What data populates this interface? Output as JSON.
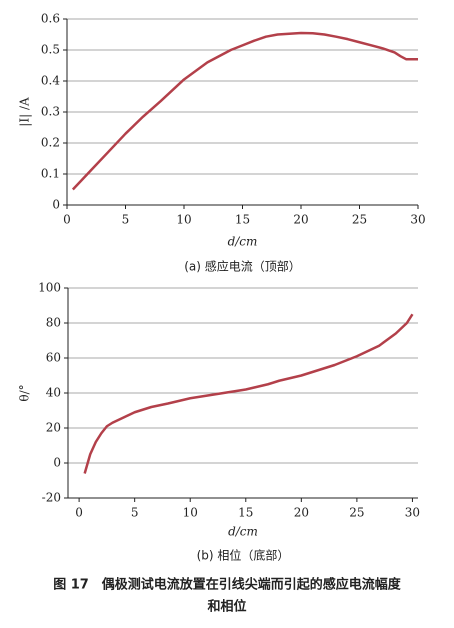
{
  "chart_data": [
    {
      "type": "line",
      "caption": "(a)  感应电流（顶部）",
      "x_label": "d/cm",
      "y_label": "|I| /A",
      "xlim": [
        0,
        30
      ],
      "xticks": [
        0,
        5,
        10,
        15,
        20,
        25,
        30
      ],
      "ylim": [
        0,
        0.6
      ],
      "yticks": [
        0,
        0.1,
        0.2,
        0.3,
        0.4,
        0.5,
        0.6
      ],
      "grid": true,
      "series": [
        {
          "color": "#b3404a",
          "x": [
            0.5,
            2,
            3.5,
            5,
            6.5,
            8,
            10,
            12,
            14,
            15,
            16,
            17,
            18,
            20,
            21,
            22,
            23,
            24,
            25,
            26,
            27,
            28,
            28.5,
            29,
            30
          ],
          "values": [
            0.05,
            0.11,
            0.17,
            0.23,
            0.285,
            0.335,
            0.405,
            0.46,
            0.5,
            0.515,
            0.53,
            0.543,
            0.55,
            0.555,
            0.554,
            0.55,
            0.543,
            0.535,
            0.525,
            0.515,
            0.505,
            0.492,
            0.48,
            0.47,
            0.47
          ]
        }
      ]
    },
    {
      "type": "line",
      "caption": "(b)  相位（底部）",
      "x_label": "d/cm",
      "y_label": "θ/°",
      "xlim": [
        -1,
        30.5
      ],
      "xticks": [
        0,
        5,
        10,
        15,
        20,
        25,
        30
      ],
      "ylim": [
        -20,
        100
      ],
      "yticks": [
        -20,
        0,
        20,
        40,
        60,
        80,
        100
      ],
      "grid": true,
      "series": [
        {
          "color": "#b3404a",
          "x": [
            0.5,
            1,
            1.5,
            2,
            2.5,
            3,
            4,
            5,
            6.5,
            8,
            10,
            12,
            13,
            15,
            17,
            18,
            20,
            22,
            23,
            25,
            27,
            28.5,
            29.5,
            30
          ],
          "values": [
            -6,
            5,
            12,
            17,
            21,
            23,
            26,
            29,
            32,
            34,
            37,
            39,
            40,
            42,
            45,
            47,
            50,
            54,
            56,
            61,
            67,
            74,
            80,
            85
          ]
        }
      ]
    }
  ],
  "figure_caption": [
    "图 17　偶极测试电流放置在引线尖端而引起的感应电流幅度",
    "和相位"
  ]
}
